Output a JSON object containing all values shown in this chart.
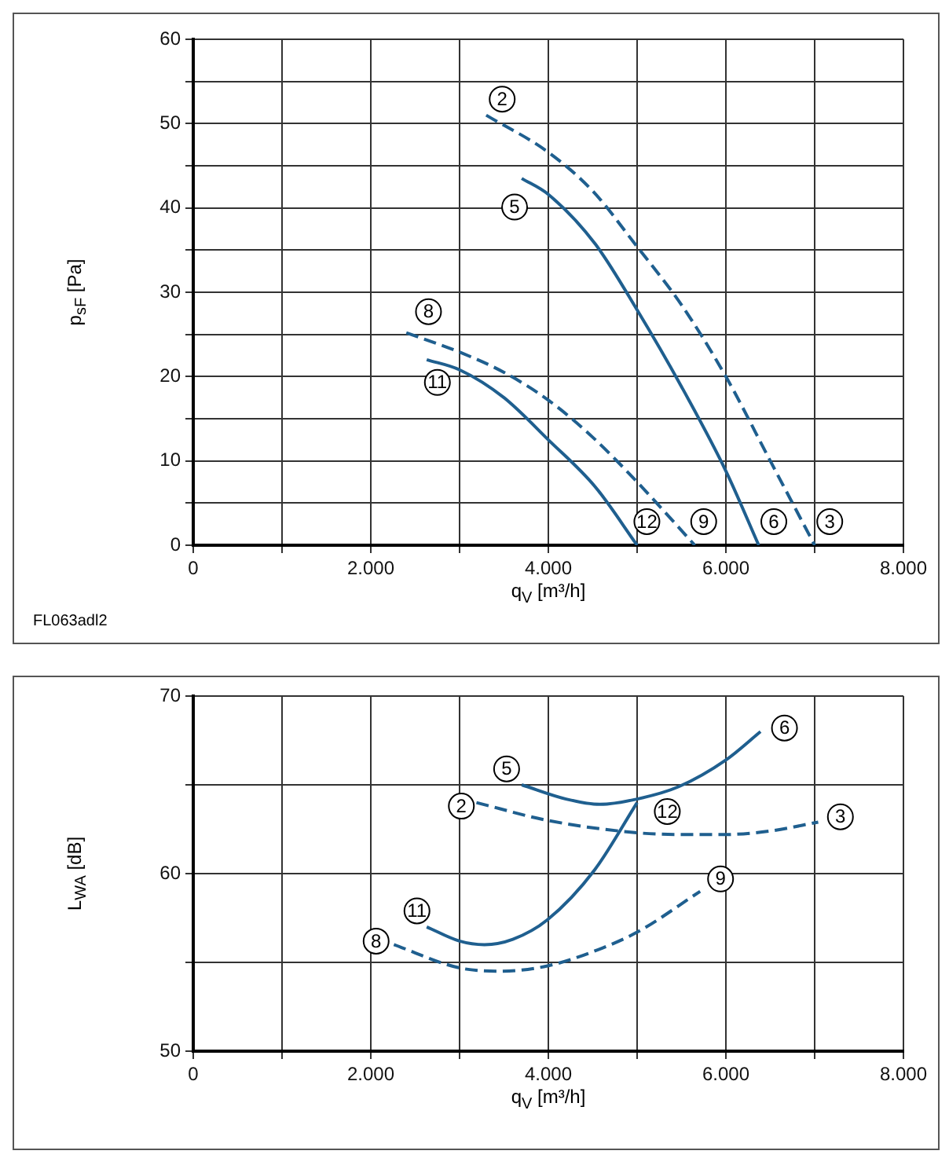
{
  "chart_data": [
    {
      "type": "line",
      "xlabel": "q$_{V}$ [m³/h]",
      "ylabel": "p$_{sF}$ [Pa]",
      "xlim": [
        0,
        8000
      ],
      "ylim": [
        0,
        60
      ],
      "xticks": [
        0,
        {
          "value": 1000,
          "label": null
        },
        {
          "value": 2000,
          "label": "2.000"
        },
        {
          "value": 3000,
          "label": null
        },
        {
          "value": 4000,
          "label": "4.000"
        },
        {
          "value": 5000,
          "label": null
        },
        {
          "value": 6000,
          "label": "6.000"
        },
        {
          "value": 7000,
          "label": null
        },
        {
          "value": 8000,
          "label": "8.000"
        }
      ],
      "yticks": [
        0,
        {
          "value": 5,
          "label": null
        },
        10,
        {
          "value": 15,
          "label": null
        },
        20,
        {
          "value": 25,
          "label": null
        },
        30,
        {
          "value": 35,
          "label": null
        },
        40,
        {
          "value": 45,
          "label": null
        },
        50,
        {
          "value": 55,
          "label": null
        },
        60
      ],
      "grid": true,
      "legend": false,
      "marker": "none",
      "series": [
        {
          "color": "#1f5f8f",
          "line_style": "dashed",
          "x": [
            3300,
            4000,
            4500,
            5000,
            5500,
            6000,
            6500,
            7000
          ],
          "values": [
            51,
            46.6,
            42,
            35.4,
            28.5,
            20,
            10,
            0
          ]
        },
        {
          "color": "#1f5f8f",
          "line_style": "solid",
          "x": [
            3700,
            4000,
            4530,
            5000,
            5500,
            6000,
            6370
          ],
          "values": [
            43.5,
            41.6,
            35.7,
            27.9,
            18.8,
            8.8,
            0
          ]
        },
        {
          "color": "#1f5f8f",
          "line_style": "dashed",
          "x": [
            2400,
            3000,
            3500,
            4000,
            4500,
            5000,
            5650
          ],
          "values": [
            25.2,
            22.9,
            20.5,
            17.2,
            12.8,
            7.5,
            0
          ]
        },
        {
          "color": "#1f5f8f",
          "line_style": "solid",
          "x": [
            2630,
            3000,
            3500,
            4000,
            4530,
            5000
          ],
          "values": [
            22,
            20.8,
            17.5,
            12.5,
            6.9,
            0
          ]
        }
      ],
      "annotations": [
        {
          "text": "2",
          "x": 3480,
          "y": 52.9
        },
        {
          "text": "5",
          "x": 3620,
          "y": 40.1
        },
        {
          "text": "8",
          "x": 2650,
          "y": 27.7
        },
        {
          "text": "11",
          "x": 2750,
          "y": 19.3
        },
        {
          "text": "12",
          "x": 5110,
          "y": 2.8
        },
        {
          "text": "9",
          "x": 5750,
          "y": 2.8
        },
        {
          "text": "6",
          "x": 6540,
          "y": 2.8
        },
        {
          "text": "3",
          "x": 7170,
          "y": 2.8
        },
        "FL063adl2"
      ]
    },
    {
      "type": "line",
      "xlabel": "q$_{V}$ [m³/h]",
      "ylabel": "L$_{WA}$ [dB]",
      "xlim": [
        0,
        8000
      ],
      "ylim": [
        50,
        70
      ],
      "xticks": [
        0,
        {
          "value": 1000,
          "label": null
        },
        {
          "value": 2000,
          "label": "2.000"
        },
        {
          "value": 3000,
          "label": null
        },
        {
          "value": 4000,
          "label": "4.000"
        },
        {
          "value": 5000,
          "label": null
        },
        {
          "value": 6000,
          "label": "6.000"
        },
        {
          "value": 7000,
          "label": null
        },
        {
          "value": 8000,
          "label": "8.000"
        }
      ],
      "yticks": [
        50,
        {
          "value": 55,
          "label": null
        },
        60,
        {
          "value": 65,
          "label": null
        },
        70
      ],
      "grid": true,
      "legend": false,
      "marker": "none",
      "series": [
        {
          "color": "#1f5f8f",
          "line_style": "dashed",
          "x": [
            3190,
            3990,
            5000,
            5530,
            5990,
            6500,
            7040
          ],
          "values": [
            64,
            63,
            62.3,
            62.2,
            62.2,
            62.4,
            62.9
          ]
        },
        {
          "color": "#1f5f8f",
          "line_style": "solid",
          "x": [
            3700,
            4200,
            4580,
            5000,
            5470,
            6000,
            6390
          ],
          "values": [
            65,
            64.2,
            63.9,
            64.2,
            64.9,
            66.4,
            68
          ]
        },
        {
          "color": "#1f5f8f",
          "line_style": "solid",
          "x": [
            2630,
            3000,
            3280,
            3600,
            3990,
            4520,
            5000
          ],
          "values": [
            57,
            56.2,
            56,
            56.3,
            57.4,
            60.2,
            64
          ]
        },
        {
          "color": "#1f5f8f",
          "line_style": "dashed",
          "x": [
            2260,
            2990,
            3460,
            3990,
            4500,
            5000,
            5710
          ],
          "values": [
            56,
            54.7,
            54.5,
            54.8,
            55.6,
            56.7,
            59
          ]
        }
      ],
      "annotations": [
        {
          "text": "6",
          "x": 6660,
          "y": 68.2
        },
        {
          "text": "5",
          "x": 3530,
          "y": 65.9
        },
        {
          "text": "2",
          "x": 3020,
          "y": 63.8
        },
        {
          "text": "12",
          "x": 5340,
          "y": 63.5
        },
        {
          "text": "3",
          "x": 7290,
          "y": 63.2
        },
        {
          "text": "9",
          "x": 5940,
          "y": 59.7
        },
        {
          "text": "11",
          "x": 2520,
          "y": 57.9
        },
        {
          "text": "8",
          "x": 2060,
          "y": 56.2
        }
      ]
    }
  ]
}
